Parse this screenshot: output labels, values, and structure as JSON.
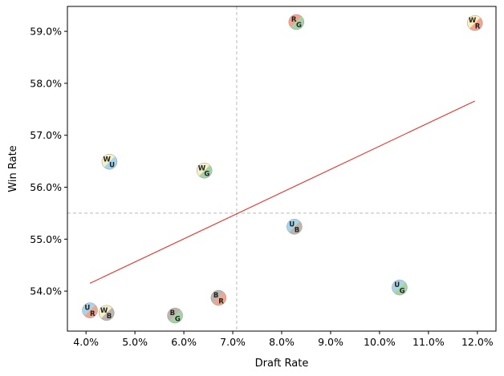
{
  "chart_data": {
    "type": "scatter",
    "title": "",
    "xlabel": "Draft Rate",
    "ylabel": "Win Rate",
    "xlim": [
      3.62,
      12.38
    ],
    "ylim": [
      53.23,
      59.48
    ],
    "x_ticks": [
      4.0,
      5.0,
      6.0,
      7.0,
      8.0,
      9.0,
      10.0,
      11.0,
      12.0
    ],
    "x_tick_labels": [
      "4.0%",
      "5.0%",
      "6.0%",
      "7.0%",
      "8.0%",
      "9.0%",
      "10.0%",
      "11.0%",
      "12.0%"
    ],
    "y_ticks": [
      54.0,
      55.0,
      56.0,
      57.0,
      58.0,
      59.0
    ],
    "y_tick_labels": [
      "54.0%",
      "55.0%",
      "56.0%",
      "57.0%",
      "58.0%",
      "59.0%"
    ],
    "color_map": {
      "W": "#f8f0c0",
      "U": "#a8d4ea",
      "B": "#bdb5ae",
      "R": "#f0a58e",
      "G": "#a3d3a7"
    },
    "points": [
      {
        "pair": "RG",
        "first": "R",
        "second": "G",
        "x": 8.3,
        "y": 59.18
      },
      {
        "pair": "WR",
        "first": "W",
        "second": "R",
        "x": 11.95,
        "y": 59.16
      },
      {
        "pair": "WU",
        "first": "W",
        "second": "U",
        "x": 4.48,
        "y": 56.49
      },
      {
        "pair": "WG",
        "first": "W",
        "second": "G",
        "x": 6.42,
        "y": 56.32
      },
      {
        "pair": "UB",
        "first": "U",
        "second": "B",
        "x": 8.26,
        "y": 55.24
      },
      {
        "pair": "UG",
        "first": "U",
        "second": "G",
        "x": 10.41,
        "y": 54.07
      },
      {
        "pair": "BR",
        "first": "B",
        "second": "R",
        "x": 6.71,
        "y": 53.87
      },
      {
        "pair": "UR",
        "first": "U",
        "second": "R",
        "x": 4.08,
        "y": 53.63
      },
      {
        "pair": "WB",
        "first": "W",
        "second": "B",
        "x": 4.42,
        "y": 53.58
      },
      {
        "pair": "BG",
        "first": "B",
        "second": "G",
        "x": 5.82,
        "y": 53.53
      }
    ],
    "trend_line": {
      "x": [
        4.08,
        11.95
      ],
      "y": [
        54.15,
        57.66
      ],
      "color": "#e8322e"
    },
    "mean_x": 7.08,
    "mean_y": 55.5,
    "reference_line_color": "#bbbbbb"
  }
}
